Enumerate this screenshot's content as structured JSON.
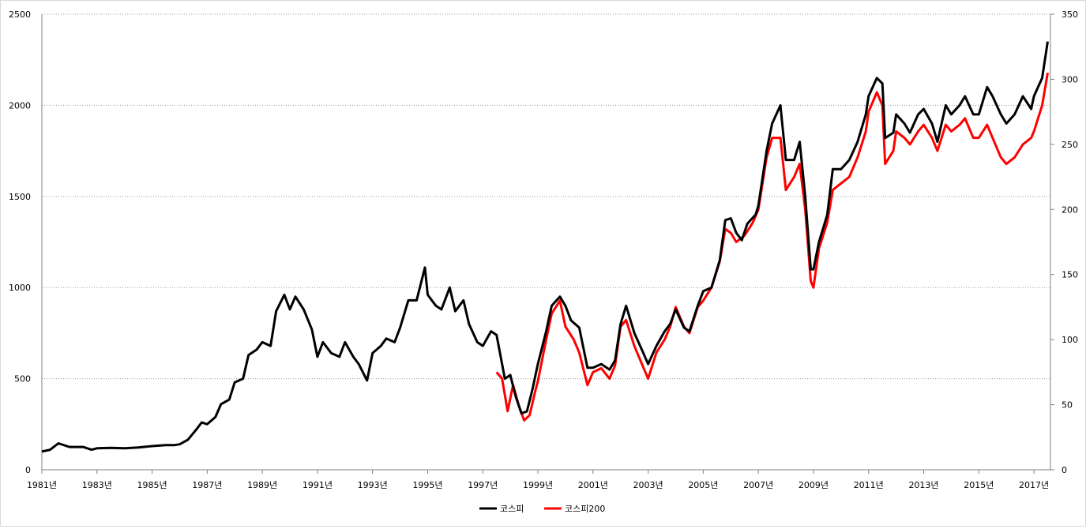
{
  "chart_data": {
    "type": "line",
    "title": "",
    "xlabel": "",
    "ylabel": "",
    "x_tick_labels": [
      "1981년",
      "1983년",
      "1985년",
      "1987년",
      "1989년",
      "1991년",
      "1993년",
      "1995년",
      "1997년",
      "1999년",
      "2001년",
      "2003년",
      "2005년",
      "2007년",
      "2009년",
      "2011년",
      "2013년",
      "2015년",
      "2017년"
    ],
    "x_ticks": [
      1981,
      1983,
      1985,
      1987,
      1989,
      1991,
      1993,
      1995,
      1997,
      1999,
      2001,
      2003,
      2005,
      2007,
      2009,
      2011,
      2013,
      2015,
      2017
    ],
    "xlim": [
      1981,
      2017.6
    ],
    "y_left_ticks": [
      "0",
      "500",
      "1000",
      "1500",
      "2000",
      "2500"
    ],
    "y_left_lim": [
      0,
      2500
    ],
    "y_right_ticks": [
      "0",
      "50",
      "100",
      "150",
      "200",
      "250",
      "300",
      "350"
    ],
    "y_right_lim": [
      0,
      350
    ],
    "grid": "horizontal dotted",
    "legend_position": "bottom",
    "series": [
      {
        "name": "코스피",
        "axis": "left",
        "color": "#000000",
        "points": [
          [
            1981.0,
            100
          ],
          [
            1981.3,
            110
          ],
          [
            1981.6,
            145
          ],
          [
            1982.0,
            125
          ],
          [
            1982.5,
            125
          ],
          [
            1982.8,
            110
          ],
          [
            1983.0,
            118
          ],
          [
            1983.5,
            120
          ],
          [
            1984.0,
            118
          ],
          [
            1984.5,
            122
          ],
          [
            1985.0,
            130
          ],
          [
            1985.5,
            135
          ],
          [
            1985.8,
            135
          ],
          [
            1986.0,
            140
          ],
          [
            1986.3,
            165
          ],
          [
            1986.6,
            220
          ],
          [
            1986.8,
            260
          ],
          [
            1987.0,
            250
          ],
          [
            1987.3,
            290
          ],
          [
            1987.5,
            360
          ],
          [
            1987.8,
            385
          ],
          [
            1988.0,
            480
          ],
          [
            1988.3,
            500
          ],
          [
            1988.5,
            630
          ],
          [
            1988.8,
            660
          ],
          [
            1989.0,
            700
          ],
          [
            1989.3,
            680
          ],
          [
            1989.5,
            870
          ],
          [
            1989.8,
            960
          ],
          [
            1990.0,
            880
          ],
          [
            1990.2,
            950
          ],
          [
            1990.5,
            880
          ],
          [
            1990.8,
            770
          ],
          [
            1991.0,
            620
          ],
          [
            1991.2,
            700
          ],
          [
            1991.5,
            640
          ],
          [
            1991.8,
            620
          ],
          [
            1992.0,
            700
          ],
          [
            1992.3,
            620
          ],
          [
            1992.5,
            580
          ],
          [
            1992.8,
            490
          ],
          [
            1993.0,
            640
          ],
          [
            1993.3,
            680
          ],
          [
            1993.5,
            720
          ],
          [
            1993.8,
            700
          ],
          [
            1994.0,
            780
          ],
          [
            1994.3,
            930
          ],
          [
            1994.6,
            930
          ],
          [
            1994.9,
            1110
          ],
          [
            1995.0,
            960
          ],
          [
            1995.3,
            900
          ],
          [
            1995.5,
            880
          ],
          [
            1995.8,
            1000
          ],
          [
            1996.0,
            870
          ],
          [
            1996.3,
            930
          ],
          [
            1996.5,
            800
          ],
          [
            1996.8,
            700
          ],
          [
            1997.0,
            680
          ],
          [
            1997.3,
            760
          ],
          [
            1997.5,
            740
          ],
          [
            1997.8,
            500
          ],
          [
            1998.0,
            520
          ],
          [
            1998.2,
            400
          ],
          [
            1998.4,
            310
          ],
          [
            1998.6,
            320
          ],
          [
            1998.8,
            440
          ],
          [
            1999.0,
            580
          ],
          [
            1999.3,
            760
          ],
          [
            1999.5,
            900
          ],
          [
            1999.8,
            950
          ],
          [
            2000.0,
            900
          ],
          [
            2000.2,
            820
          ],
          [
            2000.5,
            780
          ],
          [
            2000.8,
            560
          ],
          [
            2001.0,
            560
          ],
          [
            2001.3,
            580
          ],
          [
            2001.6,
            550
          ],
          [
            2001.8,
            600
          ],
          [
            2002.0,
            800
          ],
          [
            2002.2,
            900
          ],
          [
            2002.5,
            750
          ],
          [
            2002.8,
            650
          ],
          [
            2003.0,
            580
          ],
          [
            2003.3,
            680
          ],
          [
            2003.6,
            760
          ],
          [
            2003.8,
            800
          ],
          [
            2004.0,
            880
          ],
          [
            2004.3,
            780
          ],
          [
            2004.5,
            760
          ],
          [
            2004.8,
            900
          ],
          [
            2005.0,
            980
          ],
          [
            2005.3,
            1000
          ],
          [
            2005.6,
            1150
          ],
          [
            2005.8,
            1370
          ],
          [
            2006.0,
            1380
          ],
          [
            2006.2,
            1300
          ],
          [
            2006.4,
            1260
          ],
          [
            2006.6,
            1350
          ],
          [
            2006.9,
            1400
          ],
          [
            2007.0,
            1450
          ],
          [
            2007.3,
            1750
          ],
          [
            2007.5,
            1900
          ],
          [
            2007.8,
            2000
          ],
          [
            2008.0,
            1700
          ],
          [
            2008.3,
            1700
          ],
          [
            2008.5,
            1800
          ],
          [
            2008.7,
            1500
          ],
          [
            2008.9,
            1100
          ],
          [
            2009.0,
            1100
          ],
          [
            2009.2,
            1250
          ],
          [
            2009.5,
            1400
          ],
          [
            2009.7,
            1650
          ],
          [
            2010.0,
            1650
          ],
          [
            2010.3,
            1700
          ],
          [
            2010.6,
            1800
          ],
          [
            2010.9,
            1950
          ],
          [
            2011.0,
            2050
          ],
          [
            2011.3,
            2150
          ],
          [
            2011.5,
            2120
          ],
          [
            2011.6,
            1820
          ],
          [
            2011.9,
            1850
          ],
          [
            2012.0,
            1950
          ],
          [
            2012.3,
            1900
          ],
          [
            2012.5,
            1850
          ],
          [
            2012.8,
            1950
          ],
          [
            2013.0,
            1980
          ],
          [
            2013.3,
            1900
          ],
          [
            2013.5,
            1800
          ],
          [
            2013.8,
            2000
          ],
          [
            2014.0,
            1950
          ],
          [
            2014.3,
            2000
          ],
          [
            2014.5,
            2050
          ],
          [
            2014.8,
            1950
          ],
          [
            2015.0,
            1950
          ],
          [
            2015.3,
            2100
          ],
          [
            2015.5,
            2050
          ],
          [
            2015.8,
            1950
          ],
          [
            2016.0,
            1900
          ],
          [
            2016.3,
            1950
          ],
          [
            2016.6,
            2050
          ],
          [
            2016.9,
            1980
          ],
          [
            2017.0,
            2050
          ],
          [
            2017.3,
            2150
          ],
          [
            2017.5,
            2350
          ]
        ]
      },
      {
        "name": "코스피200",
        "axis": "right",
        "color": "#ff0000",
        "points": [
          [
            1997.5,
            75
          ],
          [
            1997.7,
            70
          ],
          [
            1997.9,
            45
          ],
          [
            1998.1,
            65
          ],
          [
            1998.3,
            50
          ],
          [
            1998.5,
            38
          ],
          [
            1998.7,
            42
          ],
          [
            1998.9,
            60
          ],
          [
            1999.0,
            68
          ],
          [
            1999.3,
            100
          ],
          [
            1999.5,
            120
          ],
          [
            1999.8,
            130
          ],
          [
            2000.0,
            110
          ],
          [
            2000.3,
            100
          ],
          [
            2000.5,
            90
          ],
          [
            2000.8,
            65
          ],
          [
            2001.0,
            75
          ],
          [
            2001.3,
            78
          ],
          [
            2001.6,
            70
          ],
          [
            2001.8,
            80
          ],
          [
            2002.0,
            110
          ],
          [
            2002.2,
            115
          ],
          [
            2002.5,
            95
          ],
          [
            2002.8,
            80
          ],
          [
            2003.0,
            70
          ],
          [
            2003.3,
            90
          ],
          [
            2003.6,
            100
          ],
          [
            2003.8,
            110
          ],
          [
            2004.0,
            125
          ],
          [
            2004.3,
            110
          ],
          [
            2004.5,
            105
          ],
          [
            2004.8,
            125
          ],
          [
            2005.0,
            130
          ],
          [
            2005.3,
            140
          ],
          [
            2005.6,
            160
          ],
          [
            2005.8,
            185
          ],
          [
            2006.0,
            182
          ],
          [
            2006.2,
            175
          ],
          [
            2006.5,
            180
          ],
          [
            2006.8,
            190
          ],
          [
            2007.0,
            200
          ],
          [
            2007.3,
            240
          ],
          [
            2007.5,
            255
          ],
          [
            2007.8,
            255
          ],
          [
            2008.0,
            215
          ],
          [
            2008.3,
            225
          ],
          [
            2008.5,
            235
          ],
          [
            2008.7,
            200
          ],
          [
            2008.9,
            145
          ],
          [
            2009.0,
            140
          ],
          [
            2009.2,
            170
          ],
          [
            2009.5,
            190
          ],
          [
            2009.7,
            215
          ],
          [
            2010.0,
            220
          ],
          [
            2010.3,
            225
          ],
          [
            2010.6,
            240
          ],
          [
            2010.9,
            260
          ],
          [
            2011.0,
            275
          ],
          [
            2011.3,
            290
          ],
          [
            2011.5,
            280
          ],
          [
            2011.6,
            235
          ],
          [
            2011.9,
            245
          ],
          [
            2012.0,
            260
          ],
          [
            2012.3,
            255
          ],
          [
            2012.5,
            250
          ],
          [
            2012.8,
            260
          ],
          [
            2013.0,
            265
          ],
          [
            2013.3,
            255
          ],
          [
            2013.5,
            245
          ],
          [
            2013.8,
            265
          ],
          [
            2014.0,
            260
          ],
          [
            2014.3,
            265
          ],
          [
            2014.5,
            270
          ],
          [
            2014.8,
            255
          ],
          [
            2015.0,
            255
          ],
          [
            2015.3,
            265
          ],
          [
            2015.5,
            255
          ],
          [
            2015.8,
            240
          ],
          [
            2016.0,
            235
          ],
          [
            2016.3,
            240
          ],
          [
            2016.6,
            250
          ],
          [
            2016.9,
            255
          ],
          [
            2017.0,
            260
          ],
          [
            2017.3,
            280
          ],
          [
            2017.5,
            305
          ]
        ]
      }
    ]
  }
}
